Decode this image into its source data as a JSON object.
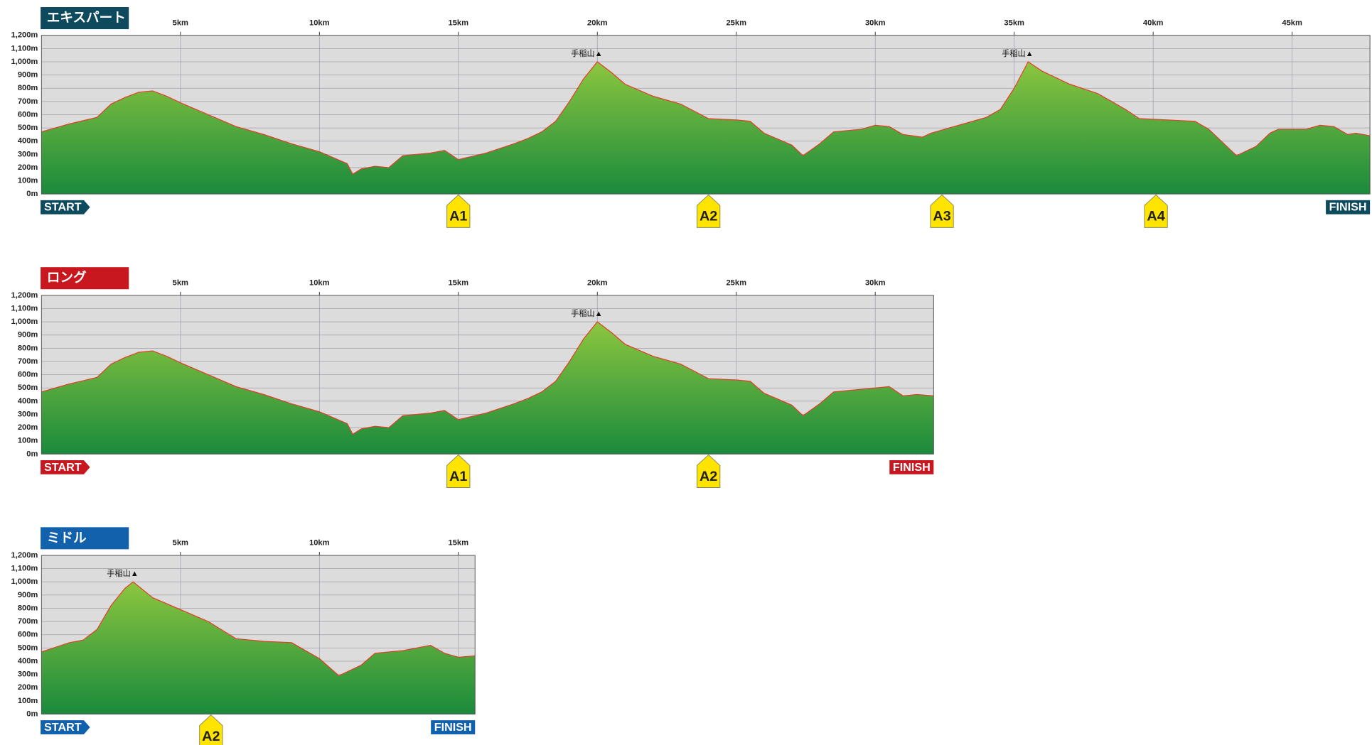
{
  "chart_data": [
    {
      "type": "area",
      "title": "エキスパート",
      "color": "#0e4a5e",
      "start_label": "START",
      "finish_label": "FINISH",
      "x": [
        0,
        1,
        1.5,
        2,
        2.5,
        3,
        3.5,
        4,
        4.5,
        5,
        6,
        7,
        8,
        9,
        10,
        11,
        11.2,
        11.5,
        12,
        12.5,
        13,
        13.5,
        14,
        14.5,
        15,
        16,
        17,
        17.5,
        18,
        18.5,
        19,
        19.5,
        20,
        20.5,
        21,
        22,
        23,
        24,
        25,
        25.5,
        26,
        27,
        27.4,
        28,
        28.5,
        29.5,
        30,
        30.5,
        31,
        31.7,
        32,
        33,
        34,
        34.5,
        35,
        35.5,
        36,
        37,
        38,
        38.5,
        39,
        39.5,
        40.5,
        41.5,
        42,
        43,
        43.7,
        44.2,
        44.5,
        45.5,
        46,
        46.5,
        47,
        47.3,
        47.8
      ],
      "values": [
        470,
        530,
        555,
        580,
        680,
        730,
        770,
        780,
        740,
        690,
        600,
        510,
        450,
        380,
        320,
        230,
        150,
        190,
        210,
        200,
        290,
        300,
        310,
        330,
        260,
        310,
        380,
        420,
        470,
        550,
        700,
        870,
        1000,
        920,
        830,
        740,
        680,
        570,
        560,
        550,
        460,
        370,
        290,
        380,
        470,
        490,
        520,
        510,
        450,
        430,
        460,
        520,
        580,
        640,
        800,
        1000,
        930,
        830,
        760,
        700,
        640,
        570,
        560,
        550,
        490,
        290,
        360,
        460,
        490,
        490,
        520,
        510,
        450,
        460,
        440
      ],
      "xlim": [
        0,
        47.8
      ],
      "xticks": [
        {
          "value": 5,
          "label": "5km"
        },
        {
          "value": 10,
          "label": "10km"
        },
        {
          "value": 15,
          "label": "15km"
        },
        {
          "value": 20,
          "label": "20km"
        },
        {
          "value": 25,
          "label": "25km"
        },
        {
          "value": 30,
          "label": "30km"
        },
        {
          "value": 35,
          "label": "35km"
        },
        {
          "value": 40,
          "label": "40km"
        },
        {
          "value": 45,
          "label": "45km"
        }
      ],
      "ylim": [
        0,
        1200
      ],
      "yticks": [
        {
          "value": 0,
          "label": "0m"
        },
        {
          "value": 100,
          "label": "100m"
        },
        {
          "value": 200,
          "label": "200m"
        },
        {
          "value": 300,
          "label": "300m"
        },
        {
          "value": 400,
          "label": "400m"
        },
        {
          "value": 500,
          "label": "500m"
        },
        {
          "value": 600,
          "label": "600m"
        },
        {
          "value": 700,
          "label": "700m"
        },
        {
          "value": 800,
          "label": "800m"
        },
        {
          "value": 900,
          "label": "900m"
        },
        {
          "value": 1000,
          "label": "1,000m"
        },
        {
          "value": 1100,
          "label": "1,100m"
        },
        {
          "value": 1200,
          "label": "1,200m"
        }
      ],
      "annotations": [
        {
          "label": "手稲山▲",
          "x": 20,
          "y": 1000
        },
        {
          "label": "手稲山▲",
          "x": 35.5,
          "y": 1000
        }
      ],
      "aid_stations": [
        {
          "label": "A1",
          "x": 15
        },
        {
          "label": "A2",
          "x": 24
        },
        {
          "label": "A3",
          "x": 32.4
        },
        {
          "label": "A4",
          "x": 40.1
        }
      ]
    },
    {
      "type": "area",
      "title": "ロング",
      "color": "#c8171e",
      "start_label": "START",
      "finish_label": "FINISH",
      "x": [
        0,
        1,
        1.5,
        2,
        2.5,
        3,
        3.5,
        4,
        4.5,
        5,
        6,
        7,
        8,
        9,
        10,
        11,
        11.2,
        11.5,
        12,
        12.5,
        13,
        13.5,
        14,
        14.5,
        15,
        16,
        17,
        17.5,
        18,
        18.5,
        19,
        19.5,
        20,
        20.5,
        21,
        22,
        23,
        24,
        25,
        25.5,
        26,
        27,
        27.4,
        28,
        28.5,
        30,
        30.5,
        31,
        31.5,
        32.1
      ],
      "values": [
        470,
        530,
        555,
        580,
        680,
        730,
        770,
        780,
        740,
        690,
        600,
        510,
        450,
        380,
        320,
        230,
        150,
        190,
        210,
        200,
        290,
        300,
        310,
        330,
        260,
        310,
        380,
        420,
        470,
        550,
        700,
        870,
        1000,
        920,
        830,
        740,
        680,
        570,
        560,
        550,
        460,
        370,
        290,
        380,
        470,
        500,
        510,
        440,
        450,
        440
      ],
      "xlim": [
        0,
        32.1
      ],
      "xticks": [
        {
          "value": 5,
          "label": "5km"
        },
        {
          "value": 10,
          "label": "10km"
        },
        {
          "value": 15,
          "label": "15km"
        },
        {
          "value": 20,
          "label": "20km"
        },
        {
          "value": 25,
          "label": "25km"
        },
        {
          "value": 30,
          "label": "30km"
        }
      ],
      "ylim": [
        0,
        1200
      ],
      "yticks": [
        {
          "value": 0,
          "label": "0m"
        },
        {
          "value": 100,
          "label": "100m"
        },
        {
          "value": 200,
          "label": "200m"
        },
        {
          "value": 300,
          "label": "300m"
        },
        {
          "value": 400,
          "label": "400m"
        },
        {
          "value": 500,
          "label": "500m"
        },
        {
          "value": 600,
          "label": "600m"
        },
        {
          "value": 700,
          "label": "700m"
        },
        {
          "value": 800,
          "label": "800m"
        },
        {
          "value": 900,
          "label": "900m"
        },
        {
          "value": 1000,
          "label": "1,000m"
        },
        {
          "value": 1100,
          "label": "1,100m"
        },
        {
          "value": 1200,
          "label": "1,200m"
        }
      ],
      "annotations": [
        {
          "label": "手稲山▲",
          "x": 20,
          "y": 1000
        }
      ],
      "aid_stations": [
        {
          "label": "A1",
          "x": 15
        },
        {
          "label": "A2",
          "x": 24
        }
      ]
    },
    {
      "type": "area",
      "title": "ミドル",
      "color": "#1261ad",
      "start_label": "START",
      "finish_label": "FINISH",
      "x": [
        0,
        1,
        1.5,
        2,
        2.5,
        3,
        3.3,
        4,
        5,
        6,
        7,
        8,
        9,
        10,
        10.7,
        11.5,
        12,
        13,
        14,
        14.5,
        15,
        15.6
      ],
      "values": [
        470,
        540,
        560,
        640,
        820,
        950,
        1000,
        880,
        790,
        700,
        570,
        550,
        540,
        420,
        290,
        370,
        460,
        480,
        520,
        460,
        430,
        440
      ],
      "xlim": [
        0,
        15.6
      ],
      "xticks": [
        {
          "value": 5,
          "label": "5km"
        },
        {
          "value": 10,
          "label": "10km"
        },
        {
          "value": 15,
          "label": "15km"
        }
      ],
      "ylim": [
        0,
        1200
      ],
      "yticks": [
        {
          "value": 0,
          "label": "0m"
        },
        {
          "value": 100,
          "label": "100m"
        },
        {
          "value": 200,
          "label": "200m"
        },
        {
          "value": 300,
          "label": "300m"
        },
        {
          "value": 400,
          "label": "400m"
        },
        {
          "value": 500,
          "label": "500m"
        },
        {
          "value": 600,
          "label": "600m"
        },
        {
          "value": 700,
          "label": "700m"
        },
        {
          "value": 800,
          "label": "800m"
        },
        {
          "value": 900,
          "label": "900m"
        },
        {
          "value": 1000,
          "label": "1,000m"
        },
        {
          "value": 1100,
          "label": "1,100m"
        },
        {
          "value": 1200,
          "label": "1,200m"
        }
      ],
      "annotations": [
        {
          "label": "手稲山▲",
          "x": 3.3,
          "y": 1000
        }
      ],
      "aid_stations": [
        {
          "label": "A2",
          "x": 6.1
        }
      ]
    }
  ]
}
